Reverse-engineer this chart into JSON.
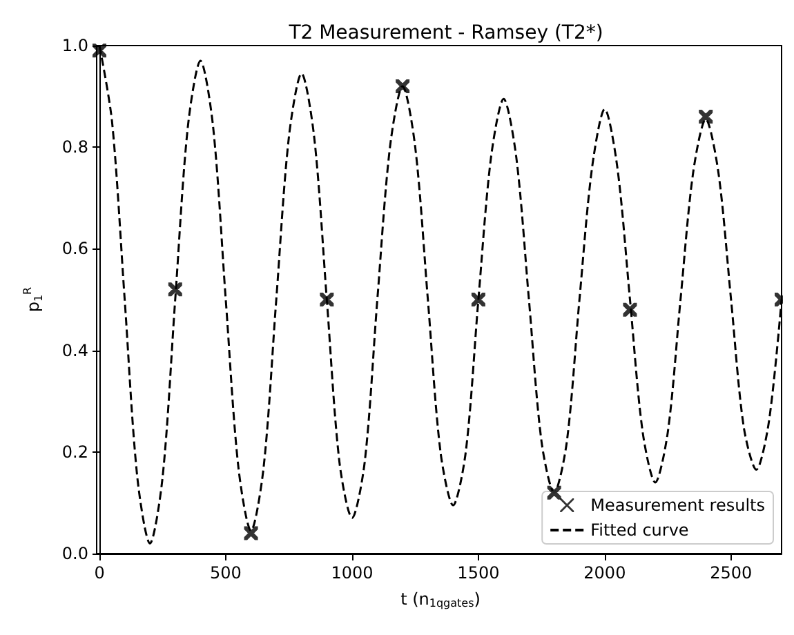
{
  "chart_data": {
    "type": "scatter",
    "title": "T2 Measurement - Ramsey (T2*)",
    "xlabel": "t (n$_{1qgates}$)",
    "ylabel": "p$_{1}$$^{R}$",
    "xlim": [
      0,
      2700
    ],
    "xticks": [
      0,
      500,
      1000,
      1500,
      2000,
      2500
    ],
    "ylim": [
      0,
      1
    ],
    "yticks": [
      {
        "value": 0,
        "label": "0.0"
      },
      0.2,
      0.4,
      0.6,
      0.8,
      {
        "value": 1,
        "label": "1.0"
      }
    ],
    "grid": false,
    "legend": "bottom right",
    "series": [
      {
        "name": "Measurement results",
        "marker": "cross",
        "color": "#000000",
        "x": [
          0,
          300,
          600,
          900,
          1200,
          1500,
          1800,
          2100,
          2400,
          2700
        ],
        "values": [
          0.99,
          0.52,
          0.04,
          0.5,
          0.92,
          0.5,
          0.12,
          0.48,
          0.86,
          0.5
        ]
      },
      {
        "name": "Fitted curve",
        "type": "line",
        "line_style": "dashed",
        "color": "#000000",
        "x": [
          0,
          50,
          100,
          150,
          200,
          250,
          300,
          350,
          400,
          450,
          500,
          550,
          600,
          650,
          700,
          750,
          800,
          850,
          900,
          950,
          1000,
          1050,
          1100,
          1150,
          1200,
          1250,
          1300,
          1350,
          1400,
          1450,
          1500,
          1550,
          1600,
          1650,
          1700,
          1750,
          1800,
          1850,
          1900,
          1950,
          2000,
          2050,
          2100,
          2150,
          2200,
          2250,
          2300,
          2350,
          2400,
          2450,
          2500,
          2550,
          2600,
          2650,
          2700
        ],
        "values": [
          1.0,
          0.85,
          0.5,
          0.15,
          0.02,
          0.15,
          0.5,
          0.84,
          0.97,
          0.84,
          0.5,
          0.17,
          0.045,
          0.17,
          0.5,
          0.82,
          0.945,
          0.82,
          0.5,
          0.18,
          0.07,
          0.18,
          0.5,
          0.8,
          0.92,
          0.8,
          0.5,
          0.2,
          0.095,
          0.2,
          0.5,
          0.78,
          0.895,
          0.78,
          0.5,
          0.22,
          0.12,
          0.22,
          0.5,
          0.76,
          0.875,
          0.76,
          0.5,
          0.24,
          0.14,
          0.24,
          0.5,
          0.75,
          0.855,
          0.75,
          0.5,
          0.25,
          0.165,
          0.26,
          0.5
        ]
      }
    ]
  }
}
